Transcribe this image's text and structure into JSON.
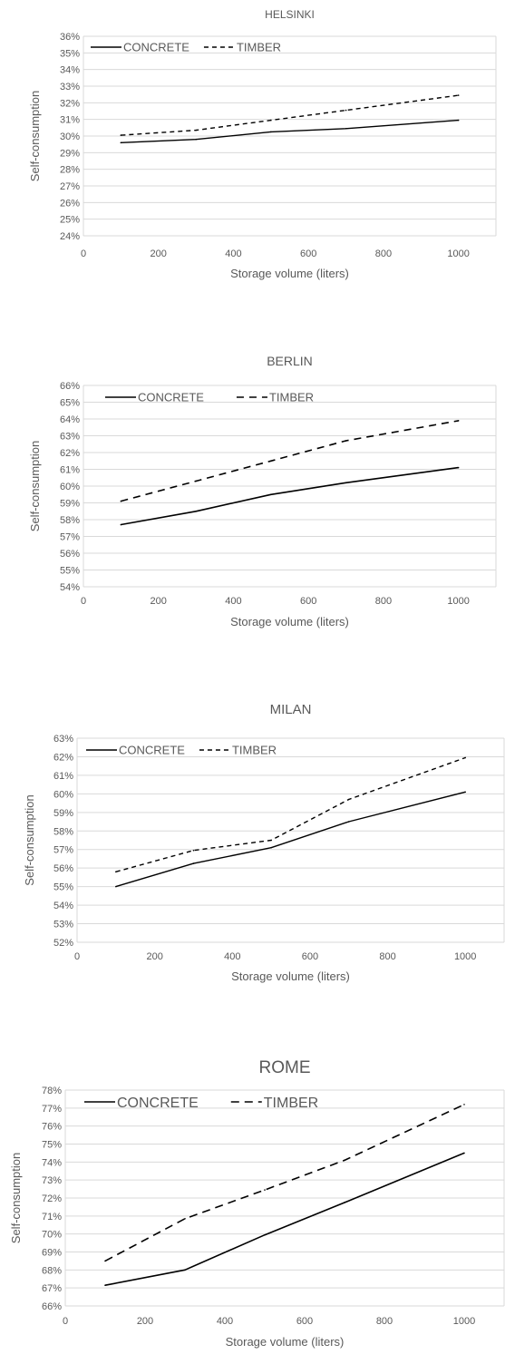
{
  "chart_data": [
    {
      "type": "line",
      "title": "HELSINKI",
      "xlabel": "Storage volume (liters)",
      "ylabel": "Self-consumption",
      "xlim": [
        0,
        1100
      ],
      "ylim": [
        24,
        36
      ],
      "x_ticks": [
        "0",
        "200",
        "400",
        "600",
        "800",
        "1000"
      ],
      "y_ticks": [
        "24%",
        "25%",
        "26%",
        "27%",
        "28%",
        "29%",
        "30%",
        "31%",
        "32%",
        "33%",
        "34%",
        "35%",
        "36%"
      ],
      "grid": true,
      "legend": "top-left",
      "x": [
        100,
        300,
        500,
        700,
        1000
      ],
      "series": [
        {
          "name": "CONCRETE",
          "style": "solid",
          "values": [
            29.6,
            29.8,
            30.25,
            30.45,
            30.95
          ]
        },
        {
          "name": "TIMBER",
          "style": "dashed",
          "values": [
            30.05,
            30.35,
            30.95,
            31.55,
            32.45
          ]
        }
      ]
    },
    {
      "type": "line",
      "title": "BERLIN",
      "xlabel": "Storage volume (liters)",
      "ylabel": "Self-consumption",
      "xlim": [
        0,
        1100
      ],
      "ylim": [
        54,
        66
      ],
      "x_ticks": [
        "0",
        "200",
        "400",
        "600",
        "800",
        "1000"
      ],
      "y_ticks": [
        "54%",
        "55%",
        "56%",
        "57%",
        "58%",
        "59%",
        "60%",
        "61%",
        "62%",
        "63%",
        "64%",
        "65%",
        "66%"
      ],
      "grid": true,
      "legend": "top-left",
      "x": [
        100,
        300,
        500,
        700,
        1000
      ],
      "series": [
        {
          "name": "CONCRETE",
          "style": "solid",
          "values": [
            57.7,
            58.5,
            59.5,
            60.2,
            61.1
          ]
        },
        {
          "name": "TIMBER",
          "style": "dashed",
          "values": [
            59.1,
            60.3,
            61.5,
            62.7,
            63.9
          ]
        }
      ]
    },
    {
      "type": "line",
      "title": "MILAN",
      "xlabel": "Storage volume (liters)",
      "ylabel": "Self-consumption",
      "xlim": [
        0,
        1100
      ],
      "ylim": [
        52,
        63
      ],
      "x_ticks": [
        "0",
        "200",
        "400",
        "600",
        "800",
        "1000"
      ],
      "y_ticks": [
        "52%",
        "53%",
        "54%",
        "55%",
        "56%",
        "57%",
        "58%",
        "59%",
        "60%",
        "61%",
        "62%",
        "63%"
      ],
      "grid": true,
      "legend": "top-left",
      "x": [
        100,
        300,
        500,
        700,
        1000
      ],
      "series": [
        {
          "name": "CONCRETE",
          "style": "solid",
          "values": [
            55.0,
            56.25,
            57.1,
            58.5,
            60.1
          ]
        },
        {
          "name": "TIMBER",
          "style": "dashed",
          "values": [
            55.8,
            56.95,
            57.5,
            59.7,
            61.95
          ]
        }
      ]
    },
    {
      "type": "line",
      "title": "ROME",
      "xlabel": "Storage volume (liters)",
      "ylabel": "Self-consumption",
      "xlim": [
        0,
        1100
      ],
      "ylim": [
        66,
        78
      ],
      "x_ticks": [
        "0",
        "200",
        "400",
        "600",
        "800",
        "1000"
      ],
      "y_ticks": [
        "66%",
        "67%",
        "68%",
        "69%",
        "70%",
        "71%",
        "72%",
        "73%",
        "74%",
        "75%",
        "76%",
        "77%",
        "78%"
      ],
      "grid": true,
      "legend": "top-left",
      "x": [
        100,
        300,
        500,
        700,
        1000
      ],
      "series": [
        {
          "name": "CONCRETE",
          "style": "solid",
          "values": [
            67.15,
            68.0,
            69.95,
            71.75,
            74.5
          ]
        },
        {
          "name": "TIMBER",
          "style": "dashed",
          "values": [
            68.5,
            70.85,
            72.45,
            74.1,
            77.2
          ]
        }
      ]
    }
  ]
}
